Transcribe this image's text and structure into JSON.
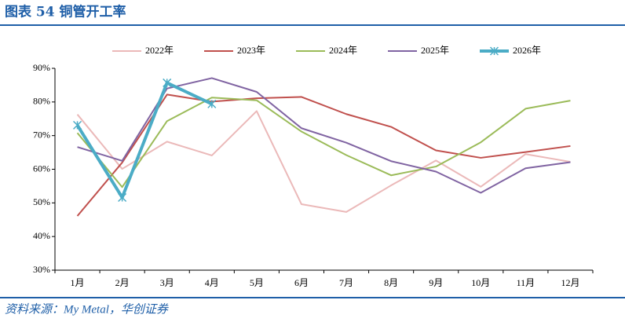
{
  "header": {
    "title": "图表 54   铜管开工率"
  },
  "chart_data": {
    "type": "line",
    "categories": [
      "1月",
      "2月",
      "3月",
      "4月",
      "5月",
      "6月",
      "7月",
      "8月",
      "9月",
      "10月",
      "11月",
      "12月"
    ],
    "series": [
      {
        "name": "2022年",
        "color": "#ebb9b9",
        "values": [
          76.3,
          60.1,
          68.2,
          64.1,
          77.3,
          49.6,
          47.3,
          55.2,
          62.6,
          54.8,
          64.5,
          62.2
        ]
      },
      {
        "name": "2023年",
        "color": "#c0504d",
        "values": [
          46.1,
          62.0,
          82.2,
          80.1,
          81.1,
          81.5,
          76.4,
          72.6,
          65.6,
          63.4,
          65.1,
          66.9
        ]
      },
      {
        "name": "2024年",
        "color": "#9bbb59",
        "values": [
          70.8,
          54.7,
          74.3,
          81.3,
          80.5,
          71.2,
          64.2,
          58.2,
          60.8,
          68.0,
          78.0,
          80.4
        ]
      },
      {
        "name": "2025年",
        "color": "#8064a2",
        "values": [
          66.6,
          62.5,
          84.0,
          87.1,
          83.0,
          72.2,
          67.9,
          62.4,
          59.3,
          53.0,
          60.3,
          62.1
        ]
      },
      {
        "name": "2026年",
        "color": "#4bacc6",
        "values": [
          73.1,
          51.6,
          85.7,
          79.4,
          null,
          null,
          null,
          null,
          null,
          null,
          null,
          null
        ]
      }
    ],
    "ylim": [
      30,
      90
    ],
    "yticks": [
      {
        "value": 30,
        "label": "30%"
      },
      {
        "value": 40,
        "label": "40%"
      },
      {
        "value": 50,
        "label": "50%"
      },
      {
        "value": 60,
        "label": "60%"
      },
      {
        "value": 70,
        "label": "70%"
      },
      {
        "value": 80,
        "label": "80%"
      },
      {
        "value": 90,
        "label": "90%"
      }
    ],
    "grid": false,
    "legend": "top"
  },
  "footer": {
    "source": "资料来源：My Metal，华创证券"
  }
}
